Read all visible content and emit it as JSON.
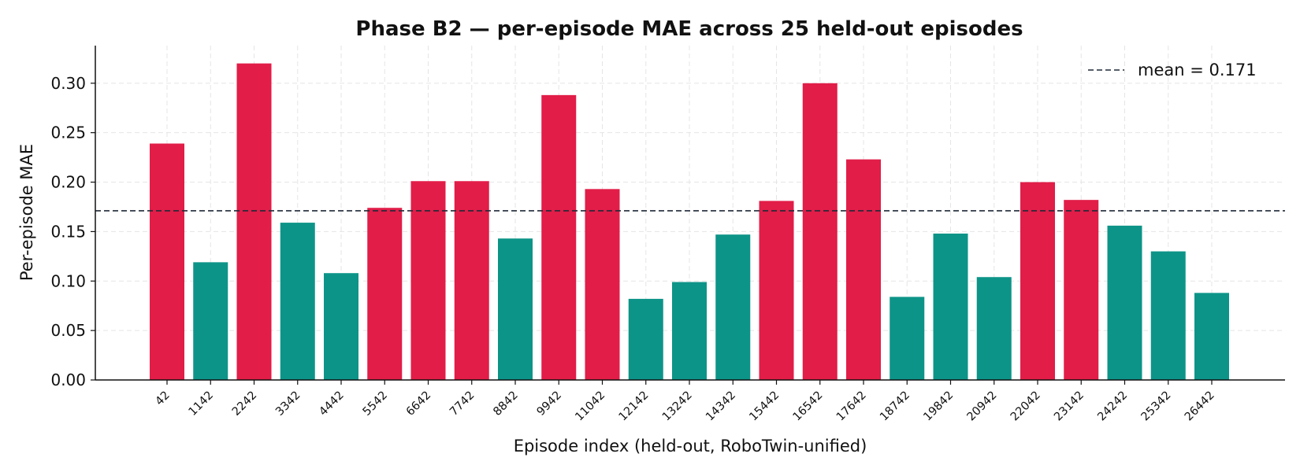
{
  "chart_data": {
    "type": "bar",
    "title": "Phase B2 — per-episode MAE across 25 held-out episodes",
    "xlabel": "Episode index (held-out, RoboTwin-unified)",
    "ylabel": "Per-episode MAE",
    "ylim": [
      0.0,
      0.338
    ],
    "yticks": [
      "0.00",
      "0.05",
      "0.10",
      "0.15",
      "0.20",
      "0.25",
      "0.30"
    ],
    "grid": true,
    "legend_position": "top-right",
    "categories": [
      "42",
      "1142",
      "2242",
      "3342",
      "4442",
      "5542",
      "6642",
      "7742",
      "8842",
      "9942",
      "11042",
      "12142",
      "13242",
      "14342",
      "15442",
      "16542",
      "17642",
      "18742",
      "19842",
      "20942",
      "22042",
      "23142",
      "24242",
      "25342",
      "26442"
    ],
    "values": [
      0.239,
      0.119,
      0.32,
      0.159,
      0.108,
      0.174,
      0.201,
      0.201,
      0.143,
      0.288,
      0.193,
      0.082,
      0.099,
      0.147,
      0.181,
      0.3,
      0.223,
      0.084,
      0.148,
      0.104,
      0.2,
      0.182,
      0.156,
      0.13,
      0.088
    ],
    "mean": 0.171,
    "mean_label": "mean = 0.171",
    "colors": {
      "above_mean": "#e11d48",
      "below_mean": "#0d9488",
      "mean_line": "#1f2937"
    }
  }
}
